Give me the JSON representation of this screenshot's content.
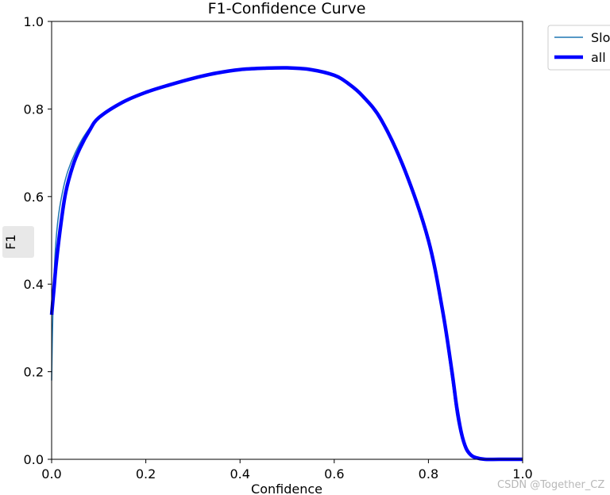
{
  "chart_data": {
    "type": "line",
    "title": "F1-Confidence Curve",
    "xlabel": "Confidence",
    "ylabel": "F1",
    "xlim": [
      0,
      1
    ],
    "ylim": [
      0,
      1
    ],
    "xticks": [
      "0.0",
      "0.2",
      "0.4",
      "0.6",
      "0.8",
      "1.0"
    ],
    "yticks": [
      "0.0",
      "0.2",
      "0.4",
      "0.6",
      "0.8",
      "1.0"
    ],
    "grid": false,
    "legend_position": "outside-top-right",
    "series": [
      {
        "name": "Slo",
        "color": "#1f77b4",
        "x": [
          0.0,
          0.003,
          0.008,
          0.015,
          0.025,
          0.035,
          0.05,
          0.07,
          0.1,
          0.15,
          0.2,
          0.25,
          0.3,
          0.35,
          0.4,
          0.45,
          0.5,
          0.55,
          0.6,
          0.63,
          0.66,
          0.7,
          0.75,
          0.8,
          0.83,
          0.85,
          0.86,
          0.87,
          0.88,
          0.89,
          0.9,
          0.92,
          0.95,
          1.0
        ],
        "y": [
          0.18,
          0.35,
          0.48,
          0.56,
          0.62,
          0.66,
          0.7,
          0.74,
          0.78,
          0.815,
          0.838,
          0.855,
          0.87,
          0.882,
          0.89,
          0.893,
          0.894,
          0.89,
          0.877,
          0.858,
          0.83,
          0.775,
          0.66,
          0.5,
          0.33,
          0.18,
          0.1,
          0.05,
          0.02,
          0.008,
          0.003,
          0.0,
          0.0,
          0.0
        ]
      },
      {
        "name": "all",
        "color": "#0000ff",
        "x": [
          0.0,
          0.005,
          0.01,
          0.02,
          0.03,
          0.045,
          0.06,
          0.08,
          0.1,
          0.15,
          0.2,
          0.25,
          0.3,
          0.35,
          0.4,
          0.45,
          0.5,
          0.55,
          0.6,
          0.63,
          0.66,
          0.7,
          0.75,
          0.8,
          0.83,
          0.85,
          0.86,
          0.87,
          0.88,
          0.89,
          0.9,
          0.92,
          0.95,
          1.0
        ],
        "y": [
          0.33,
          0.39,
          0.45,
          0.54,
          0.61,
          0.67,
          0.71,
          0.75,
          0.78,
          0.815,
          0.838,
          0.855,
          0.87,
          0.882,
          0.89,
          0.893,
          0.894,
          0.89,
          0.877,
          0.858,
          0.83,
          0.775,
          0.66,
          0.5,
          0.34,
          0.2,
          0.12,
          0.06,
          0.025,
          0.01,
          0.004,
          0.0,
          0.0,
          0.0
        ]
      }
    ]
  },
  "watermark": "CSDN @Together_CZ"
}
